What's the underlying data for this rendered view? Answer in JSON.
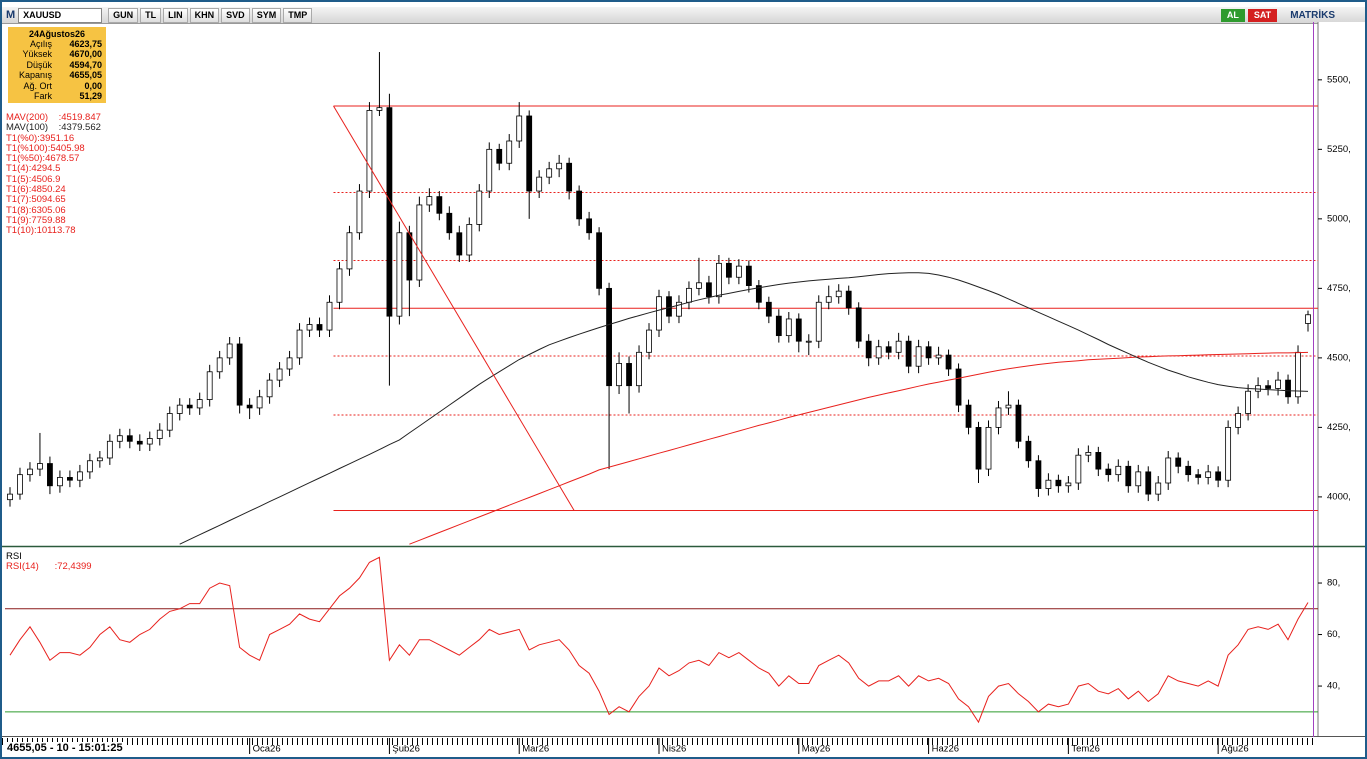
{
  "toolbar": {
    "logo": "M",
    "symbol": "XAUUSD",
    "buttons": [
      "GUN",
      "TL",
      "LIN",
      "KHN",
      "SVD",
      "SYM",
      "TMP"
    ],
    "trade_buttons": [
      "AL",
      "SAT"
    ],
    "brand": "MATRİKS"
  },
  "info_box": {
    "date": "24Ağustos26",
    "rows": [
      [
        "Açılış",
        "4623,75"
      ],
      [
        "Yüksek",
        "4670,00"
      ],
      [
        "Düşük",
        "4594,70"
      ],
      [
        "Kapanış",
        "4655,05"
      ],
      [
        "Ağ. Ort",
        "0,00"
      ],
      [
        "Fark",
        "51,29"
      ]
    ]
  },
  "indicator_legend": [
    {
      "text": "MAV(200)    :4519.847",
      "color": "#e8211d"
    },
    {
      "text": "MAV(100)    :4379.562",
      "color": "#222222"
    },
    {
      "text": "T1(%0):3951.16",
      "color": "#e8211d"
    },
    {
      "text": "T1(%100):5405.98",
      "color": "#e8211d"
    },
    {
      "text": "T1(%50):4678.57",
      "color": "#e8211d"
    },
    {
      "text": "T1(4):4294.5",
      "color": "#e8211d"
    },
    {
      "text": "T1(5):4506.9",
      "color": "#e8211d"
    },
    {
      "text": "T1(6):4850.24",
      "color": "#e8211d"
    },
    {
      "text": "T1(7):5094.65",
      "color": "#e8211d"
    },
    {
      "text": "T1(8):6305.06",
      "color": "#e8211d"
    },
    {
      "text": "T1(9):7759.88",
      "color": "#e8211d"
    },
    {
      "text": "T1(10):10113.78",
      "color": "#e8211d"
    }
  ],
  "status": "4655,05 - 10 - 15:01:25",
  "chart_data": [
    {
      "type": "candlestick",
      "up_color": "#ffffff",
      "down_color": "#000000",
      "outline": "#000000",
      "xlim": [
        -0.5,
        130.5
      ],
      "ylim": [
        3827,
        5708
      ],
      "yticks": [
        {
          "value": 4000,
          "label": "4000,"
        },
        {
          "value": 4250,
          "label": "4250,"
        },
        {
          "value": 4500,
          "label": "4500,"
        },
        {
          "value": 4750,
          "label": "4750,"
        },
        {
          "value": 5000,
          "label": "5000,"
        },
        {
          "value": 5250,
          "label": "5250,"
        },
        {
          "value": 5500,
          "label": "5500,"
        }
      ],
      "xticks": [
        {
          "value": 24,
          "label": "Oca26"
        },
        {
          "value": 38,
          "label": "Şub26"
        },
        {
          "value": 51,
          "label": "Mar26"
        },
        {
          "value": 65,
          "label": "Nis26"
        },
        {
          "value": 79,
          "label": "May26"
        },
        {
          "value": 92,
          "label": "Haz26"
        },
        {
          "value": 106,
          "label": "Tem26"
        },
        {
          "value": 121,
          "label": "Ağu26"
        }
      ],
      "open": [
        3990,
        4010,
        4080,
        4100,
        4120,
        4040,
        4070,
        4060,
        4090,
        4130,
        4140,
        4200,
        4220,
        4200,
        4190,
        4210,
        4240,
        4300,
        4330,
        4320,
        4350,
        4450,
        4500,
        4550,
        4330,
        4320,
        4360,
        4420,
        4460,
        4500,
        4600,
        4620,
        4600,
        4700,
        4820,
        4950,
        5100,
        5390,
        5400,
        4650,
        4950,
        4780,
        5050,
        5080,
        5020,
        4950,
        4870,
        4980,
        5100,
        5250,
        5200,
        5280,
        5370,
        5100,
        5150,
        5180,
        5200,
        5100,
        5000,
        4950,
        4750,
        4400,
        4480,
        4400,
        4520,
        4600,
        4720,
        4650,
        4700,
        4750,
        4770,
        4720,
        4840,
        4790,
        4830,
        4760,
        4700,
        4650,
        4580,
        4640,
        4560,
        4560,
        4700,
        4720,
        4740,
        4680,
        4560,
        4500,
        4540,
        4520,
        4560,
        4470,
        4540,
        4500,
        4510,
        4460,
        4330,
        4250,
        4100,
        4250,
        4320,
        4330,
        4200,
        4130,
        4030,
        4060,
        4040,
        4050,
        4150,
        4160,
        4100,
        4080,
        4110,
        4040,
        4090,
        4010,
        4050,
        4140,
        4110,
        4080,
        4070,
        4090,
        4060,
        4250,
        4300,
        4380,
        4400,
        4390,
        4420,
        4360,
        4623.75
      ],
      "high": [
        4035,
        4105,
        4125,
        4230,
        4145,
        4095,
        4095,
        4115,
        4155,
        4165,
        4225,
        4245,
        4245,
        4225,
        4235,
        4265,
        4325,
        4355,
        4355,
        4375,
        4475,
        4525,
        4575,
        4575,
        4355,
        4385,
        4445,
        4485,
        4525,
        4625,
        4645,
        4645,
        4725,
        4845,
        4975,
        5125,
        5420,
        5600,
        5450,
        4990,
        4975,
        5080,
        5110,
        5100,
        5045,
        4975,
        5005,
        5125,
        5275,
        5270,
        5305,
        5420,
        5390,
        5175,
        5205,
        5230,
        5220,
        5120,
        5025,
        4970,
        4770,
        4520,
        4505,
        4545,
        4625,
        4745,
        4740,
        4725,
        4775,
        4860,
        4795,
        4870,
        4860,
        4855,
        4850,
        4780,
        4720,
        4675,
        4665,
        4660,
        4585,
        4725,
        4760,
        4765,
        4760,
        4700,
        4585,
        4565,
        4560,
        4590,
        4580,
        4565,
        4560,
        4540,
        4530,
        4480,
        4350,
        4270,
        4275,
        4345,
        4380,
        4350,
        4220,
        4150,
        4085,
        4080,
        4075,
        4175,
        4185,
        4180,
        4120,
        4135,
        4130,
        4115,
        4110,
        4075,
        4165,
        4160,
        4130,
        4100,
        4115,
        4110,
        4275,
        4325,
        4405,
        4430,
        4420,
        4450,
        4440,
        4545,
        4670
      ],
      "low": [
        3965,
        3990,
        4055,
        4075,
        4010,
        4015,
        4035,
        4035,
        4065,
        4105,
        4115,
        4175,
        4175,
        4165,
        4165,
        4185,
        4215,
        4275,
        4295,
        4295,
        4325,
        4425,
        4475,
        4300,
        4280,
        4295,
        4335,
        4395,
        4435,
        4475,
        4575,
        4575,
        4575,
        4675,
        4795,
        4925,
        5075,
        5370,
        4400,
        4620,
        4650,
        4755,
        5025,
        4995,
        4925,
        4845,
        4845,
        4955,
        5075,
        5175,
        5175,
        5255,
        5000,
        5075,
        5125,
        5150,
        5070,
        4975,
        4925,
        4725,
        4100,
        4370,
        4300,
        4375,
        4495,
        4575,
        4625,
        4625,
        4675,
        4725,
        4695,
        4695,
        4765,
        4765,
        4735,
        4675,
        4625,
        4555,
        4555,
        4520,
        4510,
        4535,
        4675,
        4695,
        4655,
        4535,
        4470,
        4475,
        4495,
        4495,
        4445,
        4445,
        4475,
        4475,
        4435,
        4305,
        4225,
        4050,
        4075,
        4225,
        4295,
        4175,
        4105,
        4000,
        4005,
        4015,
        4015,
        4025,
        4125,
        4075,
        4055,
        4055,
        4015,
        4015,
        3985,
        3985,
        4025,
        4085,
        4055,
        4045,
        4045,
        4035,
        4035,
        4225,
        4275,
        4355,
        4365,
        4365,
        4335,
        4335,
        4594.7
      ],
      "close": [
        4010,
        4080,
        4100,
        4120,
        4040,
        4070,
        4060,
        4090,
        4130,
        4140,
        4200,
        4220,
        4200,
        4190,
        4210,
        4240,
        4300,
        4330,
        4320,
        4350,
        4450,
        4500,
        4550,
        4330,
        4320,
        4360,
        4420,
        4460,
        4500,
        4600,
        4620,
        4600,
        4700,
        4820,
        4950,
        5100,
        5390,
        5400,
        4650,
        4950,
        4780,
        5050,
        5080,
        5020,
        4950,
        4870,
        4980,
        5100,
        5250,
        5200,
        5280,
        5370,
        5100,
        5150,
        5180,
        5200,
        5100,
        5000,
        4950,
        4750,
        4400,
        4480,
        4400,
        4520,
        4600,
        4720,
        4650,
        4700,
        4750,
        4770,
        4720,
        4840,
        4790,
        4830,
        4760,
        4700,
        4650,
        4580,
        4640,
        4560,
        4560,
        4700,
        4720,
        4740,
        4680,
        4560,
        4500,
        4540,
        4520,
        4560,
        4470,
        4540,
        4500,
        4510,
        4460,
        4330,
        4250,
        4100,
        4250,
        4320,
        4330,
        4200,
        4130,
        4030,
        4060,
        4040,
        4050,
        4150,
        4160,
        4100,
        4080,
        4110,
        4040,
        4090,
        4010,
        4050,
        4140,
        4110,
        4080,
        4070,
        4090,
        4060,
        4250,
        4300,
        4380,
        4400,
        4390,
        4420,
        4360,
        4520,
        4655.05
      ],
      "lines": [
        {
          "name": "MAV(200)",
          "color": "#e8211d",
          "values": [
            null,
            null,
            null,
            null,
            null,
            null,
            null,
            null,
            null,
            null,
            null,
            null,
            null,
            null,
            null,
            null,
            null,
            null,
            null,
            null,
            null,
            null,
            null,
            null,
            null,
            null,
            null,
            null,
            null,
            null,
            null,
            null,
            null,
            null,
            null,
            null,
            null,
            null,
            null,
            null,
            3830,
            3844,
            3858,
            3872,
            3886,
            3900,
            3914,
            3928,
            3942,
            3956,
            3970,
            3984,
            3998,
            4012,
            4026,
            4040,
            4054,
            4068,
            4082,
            4097,
            4107,
            4117,
            4127,
            4137,
            4147,
            4157,
            4167,
            4177,
            4187,
            4197,
            4207,
            4217,
            4227,
            4237,
            4247,
            4257,
            4266,
            4276,
            4286,
            4295,
            4304,
            4313,
            4322,
            4331,
            4340,
            4349,
            4358,
            4366,
            4374,
            4382,
            4390,
            4398,
            4406,
            4413,
            4420,
            4427,
            4434,
            4441,
            4448,
            4455,
            4461,
            4466,
            4471,
            4476,
            4480,
            4484,
            4487,
            4490,
            4493,
            4495,
            4497,
            4499,
            4501,
            4503,
            4504,
            4506,
            4507,
            4508,
            4509,
            4510,
            4511,
            4512,
            4513,
            4514,
            4515,
            4516,
            4517,
            4518,
            4518,
            4519,
            4519.847
          ]
        },
        {
          "name": "MAV(100)",
          "color": "#222222",
          "values": [
            null,
            null,
            null,
            null,
            null,
            null,
            null,
            null,
            null,
            null,
            null,
            null,
            null,
            null,
            null,
            null,
            null,
            3830,
            3847,
            3864,
            3881,
            3898,
            3915,
            3932,
            3949,
            3966,
            3983,
            4000,
            4017,
            4034,
            4051,
            4068,
            4085,
            4102,
            4119,
            4136,
            4153,
            4170,
            4188,
            4205,
            4230,
            4255,
            4280,
            4305,
            4330,
            4355,
            4380,
            4405,
            4428,
            4450,
            4472,
            4494,
            4512,
            4530,
            4547,
            4560,
            4573,
            4585,
            4597,
            4609,
            4620,
            4631,
            4642,
            4652,
            4662,
            4672,
            4681,
            4690,
            4700,
            4709,
            4717,
            4725,
            4732,
            4739,
            4746,
            4752,
            4758,
            4764,
            4769,
            4773,
            4777,
            4780,
            4783,
            4786,
            4788,
            4792,
            4796,
            4800,
            4803,
            4805,
            4806,
            4806,
            4804,
            4798,
            4790,
            4780,
            4768,
            4755,
            4742,
            4728,
            4712,
            4696,
            4680,
            4664,
            4648,
            4632,
            4616,
            4600,
            4583,
            4566,
            4548,
            4532,
            4516,
            4500,
            4484,
            4470,
            4456,
            4444,
            4432,
            4422,
            4412,
            4404,
            4398,
            4393,
            4390,
            4388,
            4386,
            4384,
            4382,
            4381,
            4379.562
          ]
        }
      ],
      "levels_x0": 32.4,
      "levels": [
        {
          "value": 5405.98,
          "style": "solid",
          "color": "#e8211d"
        },
        {
          "value": 4678.57,
          "style": "solid",
          "color": "#e8211d"
        },
        {
          "value": 3951.16,
          "style": "solid",
          "color": "#e8211d"
        },
        {
          "value": 5094.65,
          "style": "dotted",
          "color": "#e8211d"
        },
        {
          "value": 4850.24,
          "style": "dotted",
          "color": "#e8211d"
        },
        {
          "value": 4506.9,
          "style": "dotted",
          "color": "#e8211d"
        },
        {
          "value": 4294.5,
          "style": "dotted",
          "color": "#e8211d"
        }
      ],
      "trendline": {
        "x": [
          32.4,
          56.5
        ],
        "y": [
          5405.98,
          3951.16
        ],
        "color": "#e8211d"
      }
    },
    {
      "type": "line",
      "title": "RSI",
      "legend_text": "RSI(14)      :72,4399",
      "xlim": [
        -0.5,
        130.5
      ],
      "ylim": [
        21,
        93.6
      ],
      "yticks": [
        {
          "value": 40,
          "label": "40,"
        },
        {
          "value": 60,
          "label": "60,"
        },
        {
          "value": 80,
          "label": "80,"
        }
      ],
      "levels": [
        {
          "value": 70,
          "style": "solid",
          "color": "#8b1a1a"
        },
        {
          "value": 30,
          "style": "solid",
          "color": "#2e9b2e"
        }
      ],
      "series": [
        {
          "name": "RSI(14)",
          "color": "#e8211d",
          "values": [
            52,
            58,
            63,
            57,
            50,
            53,
            53,
            52,
            55,
            60,
            63,
            58,
            57,
            60,
            62,
            66,
            69,
            70,
            72,
            72,
            78,
            80,
            79,
            55,
            52,
            50,
            60,
            62,
            64,
            68,
            66,
            65,
            70,
            75,
            78,
            82,
            88,
            90,
            50,
            56,
            52,
            58,
            58,
            56,
            54,
            52,
            55,
            58,
            62,
            60,
            61,
            62,
            54,
            56,
            57,
            58,
            54,
            48,
            45,
            38,
            29,
            32,
            30,
            36,
            40,
            47,
            44,
            46,
            49,
            50,
            48,
            53,
            51,
            53,
            50,
            47,
            45,
            40,
            44,
            41,
            41,
            48,
            50,
            52,
            49,
            43,
            40,
            42,
            42,
            44,
            40,
            44,
            42,
            43,
            41,
            35,
            32,
            26,
            36,
            40,
            41,
            37,
            34,
            30,
            33,
            32,
            33,
            40,
            41,
            38,
            37,
            39,
            35,
            38,
            34,
            37,
            44,
            42,
            41,
            40,
            42,
            40,
            52,
            56,
            62,
            63,
            62,
            64,
            58,
            66,
            72.4399
          ]
        }
      ]
    }
  ]
}
